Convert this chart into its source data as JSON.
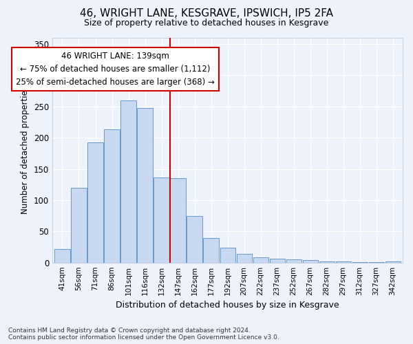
{
  "title1": "46, WRIGHT LANE, KESGRAVE, IPSWICH, IP5 2FA",
  "title2": "Size of property relative to detached houses in Kesgrave",
  "xlabel": "Distribution of detached houses by size in Kesgrave",
  "ylabel": "Number of detached properties",
  "categories": [
    "41sqm",
    "56sqm",
    "71sqm",
    "86sqm",
    "101sqm",
    "116sqm",
    "132sqm",
    "147sqm",
    "162sqm",
    "177sqm",
    "192sqm",
    "207sqm",
    "222sqm",
    "237sqm",
    "252sqm",
    "267sqm",
    "282sqm",
    "297sqm",
    "312sqm",
    "327sqm",
    "342sqm"
  ],
  "values": [
    22,
    120,
    193,
    213,
    260,
    248,
    136,
    135,
    75,
    39,
    24,
    14,
    8,
    6,
    5,
    4,
    2,
    2,
    1,
    1,
    2
  ],
  "bar_color": "#c8d8f0",
  "bar_edge_color": "#6699cc",
  "vline_color": "#cc0000",
  "annotation_line1": "46 WRIGHT LANE: 139sqm",
  "annotation_line2": "← 75% of detached houses are smaller (1,112)",
  "annotation_line3": "25% of semi-detached houses are larger (368) →",
  "annotation_box_facecolor": "#ffffff",
  "annotation_box_edgecolor": "#cc0000",
  "background_color": "#eef2fb",
  "grid_color": "#ffffff",
  "footer": "Contains HM Land Registry data © Crown copyright and database right 2024.\nContains public sector information licensed under the Open Government Licence v3.0.",
  "ylim": [
    0,
    360
  ],
  "figsize": [
    6.0,
    5.0
  ],
  "dpi": 100
}
